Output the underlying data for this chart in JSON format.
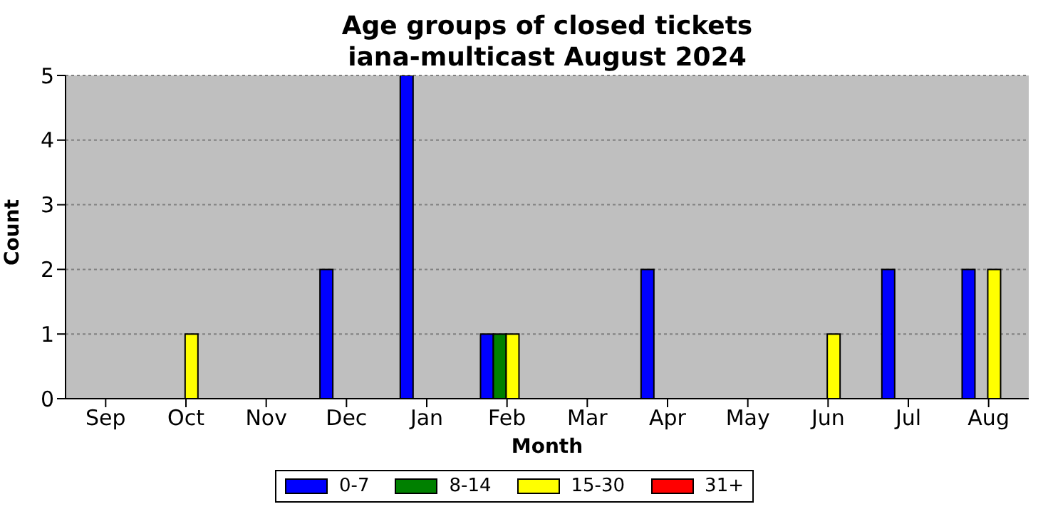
{
  "chart_data": {
    "type": "bar",
    "title": "Age groups of closed tickets",
    "subtitle": "iana-multicast August 2024",
    "xlabel": "Month",
    "ylabel": "Count",
    "categories": [
      "Sep",
      "Oct",
      "Nov",
      "Dec",
      "Jan",
      "Feb",
      "Mar",
      "Apr",
      "May",
      "Jun",
      "Jul",
      "Aug"
    ],
    "series": [
      {
        "name": "0-7",
        "color": "#0000ff",
        "values": [
          0,
          0,
          0,
          2,
          5,
          1,
          0,
          2,
          0,
          0,
          2,
          2
        ]
      },
      {
        "name": "8-14",
        "color": "#008000",
        "values": [
          0,
          0,
          0,
          0,
          0,
          1,
          0,
          0,
          0,
          0,
          0,
          0
        ]
      },
      {
        "name": "15-30",
        "color": "#ffff00",
        "values": [
          0,
          1,
          0,
          0,
          0,
          1,
          0,
          0,
          0,
          1,
          0,
          2
        ]
      },
      {
        "name": "31+",
        "color": "#ff0000",
        "values": [
          0,
          0,
          0,
          0,
          0,
          0,
          0,
          0,
          0,
          0,
          0,
          0
        ]
      }
    ],
    "ylim": [
      0,
      5
    ],
    "yticks": [
      0,
      1,
      2,
      3,
      4,
      5
    ],
    "grid": "y",
    "legend": "bottom"
  }
}
